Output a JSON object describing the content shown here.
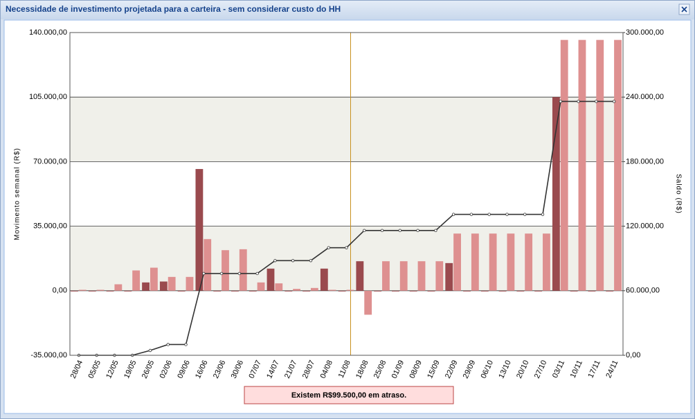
{
  "window": {
    "title": "Necessidade de investimento projetada para a carteira - sem considerar custo do HH"
  },
  "chart_data": {
    "type": "bar",
    "y_label": "Movimento semanal (R$)",
    "y2_label": "Saldo (R$)",
    "categories": [
      "28/04",
      "05/05",
      "12/05",
      "19/05",
      "26/05",
      "02/06",
      "09/06",
      "16/06",
      "23/06",
      "30/06",
      "07/07",
      "14/07",
      "21/07",
      "28/07",
      "04/08",
      "11/08",
      "18/08",
      "25/08",
      "01/09",
      "08/09",
      "15/09",
      "22/09",
      "29/09",
      "06/10",
      "13/10",
      "20/10",
      "27/10",
      "03/11",
      "10/11",
      "17/11",
      "24/11"
    ],
    "series": [
      {
        "color": "#9a4a4e",
        "values": [
          0,
          0,
          0,
          0,
          4500,
          5000,
          0,
          66000,
          0,
          0,
          0,
          12000,
          0,
          0,
          12000,
          0,
          16000,
          0,
          0,
          0,
          0,
          15000,
          0,
          0,
          0,
          0,
          0,
          105000,
          0,
          0,
          0
        ]
      },
      {
        "color": "#de9090",
        "values": [
          500,
          500,
          3500,
          11000,
          12500,
          7500,
          7500,
          28000,
          22000,
          22500,
          4500,
          4000,
          1000,
          1500,
          500,
          500,
          -13000,
          16000,
          16000,
          16000,
          16000,
          31000,
          31000,
          31000,
          31000,
          31000,
          31000,
          136000,
          136000,
          136000,
          136000
        ]
      },
      {
        "type": "line",
        "axis": "y2",
        "color": "#333333",
        "values": [
          0,
          0,
          0,
          0,
          4500,
          10000,
          10000,
          76000,
          76000,
          76000,
          76000,
          88000,
          88000,
          88000,
          100000,
          100000,
          116000,
          116000,
          116000,
          116000,
          116000,
          131000,
          131000,
          131000,
          131000,
          131000,
          131000,
          236000,
          236000,
          236000,
          236000
        ]
      }
    ],
    "ylim": [
      -35000,
      140000
    ],
    "yticks": [
      {
        "value": -35000,
        "label": "-35.000,00"
      },
      {
        "value": 0,
        "label": "0,00"
      },
      {
        "value": 35000,
        "label": "35.000,00"
      },
      {
        "value": 70000,
        "label": "70.000,00"
      },
      {
        "value": 105000,
        "label": "105.000,00"
      },
      {
        "value": 140000,
        "label": "140.000,00"
      }
    ],
    "y2lim": [
      0,
      300000
    ],
    "y2ticks": [
      {
        "value": 0,
        "label": "0,00"
      },
      {
        "value": 60000,
        "label": "60.000,00"
      },
      {
        "value": 120000,
        "label": "120.000,00"
      },
      {
        "value": 180000,
        "label": "180.000,00"
      },
      {
        "value": 240000,
        "label": "240.000,00"
      },
      {
        "value": 300000,
        "label": "300.000,00"
      }
    ],
    "grid": true
  },
  "footer": {
    "message": "Existem R$99.500,00 em atraso."
  }
}
